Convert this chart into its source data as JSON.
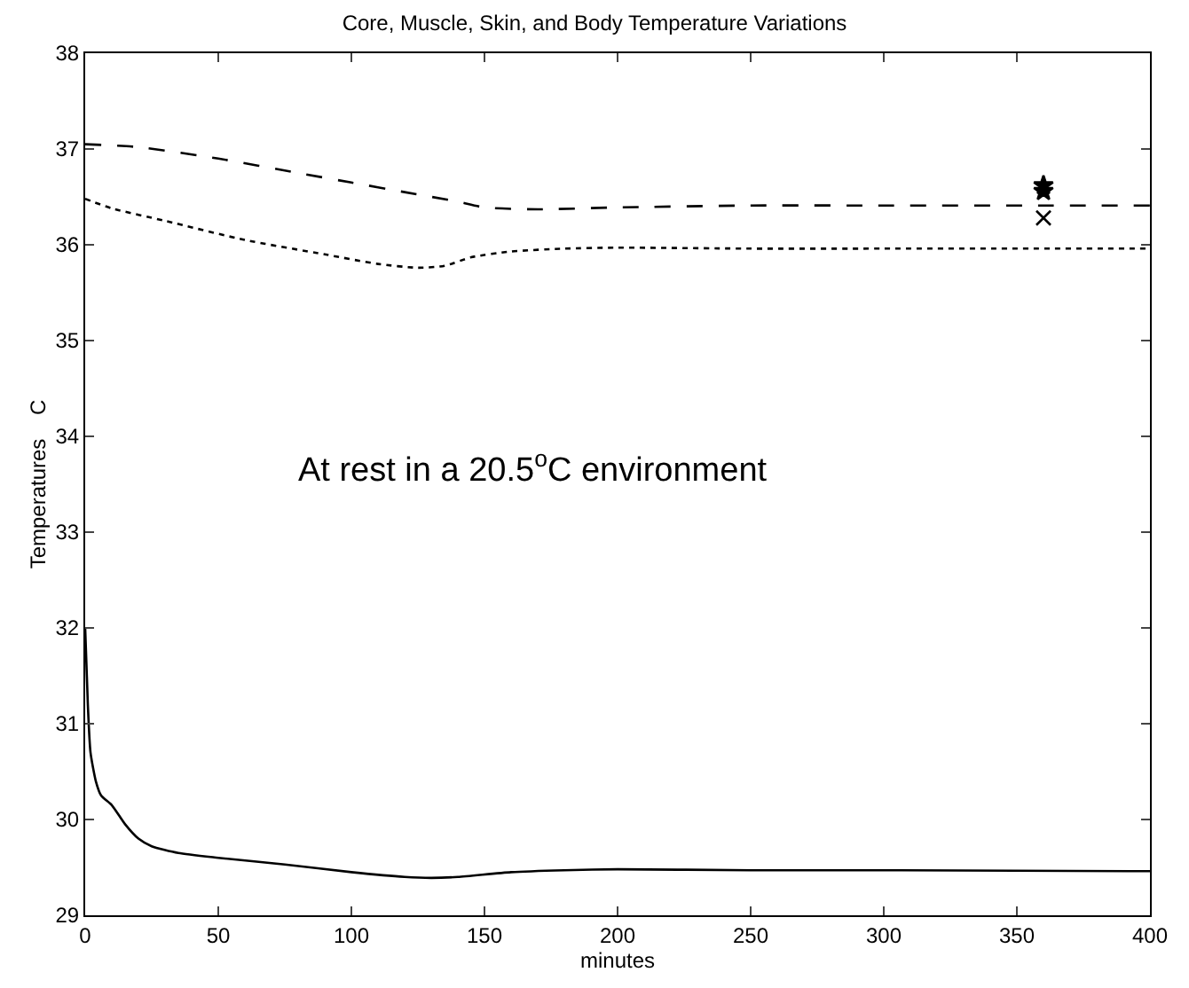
{
  "chart_data": {
    "type": "line",
    "title": "Core, Muscle, Skin, and Body Temperature Variations",
    "xlabel": "minutes",
    "ylabel": "Temperatures    C",
    "xlim": [
      0,
      400
    ],
    "xticks": [
      0,
      50,
      100,
      150,
      200,
      250,
      300,
      350,
      400
    ],
    "ylim": [
      29,
      38
    ],
    "yticks": [
      29,
      30,
      31,
      32,
      33,
      34,
      35,
      36,
      37,
      38
    ],
    "annotations": [
      "At rest in a 20.5$^{o}$C environment"
    ],
    "series": [
      {
        "color": "#000000",
        "line_style": "dashed",
        "marker": "none",
        "x": [
          0,
          20,
          50,
          80,
          100,
          120,
          140,
          150,
          170,
          200,
          250,
          300,
          360,
          400
        ],
        "values": [
          37.05,
          37.02,
          36.9,
          36.75,
          36.65,
          36.55,
          36.45,
          36.39,
          36.37,
          36.39,
          36.41,
          36.41,
          36.41,
          36.41
        ]
      },
      {
        "color": "#000000",
        "line_style": "dotted",
        "marker": "none",
        "x": [
          0,
          10,
          30,
          60,
          90,
          110,
          125,
          135,
          145,
          160,
          180,
          200,
          250,
          300,
          400
        ],
        "values": [
          36.48,
          36.38,
          36.25,
          36.05,
          35.9,
          35.8,
          35.76,
          35.78,
          35.87,
          35.93,
          35.96,
          35.97,
          35.96,
          35.96,
          35.96
        ]
      },
      {
        "color": "#000000",
        "line_style": "solid",
        "marker": "none",
        "x": [
          0,
          1,
          2,
          4,
          6,
          10,
          15,
          20,
          25,
          35,
          50,
          75,
          100,
          120,
          130,
          140,
          160,
          180,
          200,
          250,
          300,
          400
        ],
        "values": [
          32.0,
          31.2,
          30.7,
          30.4,
          30.25,
          30.15,
          29.95,
          29.8,
          29.72,
          29.65,
          29.6,
          29.53,
          29.45,
          29.4,
          29.39,
          29.4,
          29.45,
          29.47,
          29.48,
          29.47,
          29.47,
          29.46
        ]
      },
      {
        "type": "scatter",
        "color": "#000000",
        "marker": "star",
        "x": [
          360,
          360
        ],
        "values": [
          36.62,
          36.56
        ]
      },
      {
        "type": "scatter",
        "color": "#000000",
        "marker": "cross",
        "x": [
          360
        ],
        "values": [
          36.28
        ]
      }
    ]
  }
}
